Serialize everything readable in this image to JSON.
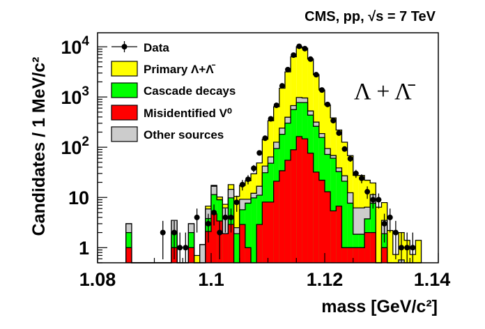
{
  "chart_data": {
    "type": "bar",
    "histogram": "stacked",
    "title": "CMS, pp, √s = 7 TeV",
    "annotation": "Λ + Λ̄",
    "xlabel": "mass [GeV/c²]",
    "ylabel": "Candidates / 1 MeV/c²",
    "xlim": [
      1.08,
      1.14
    ],
    "ylim": [
      0.5,
      19000
    ],
    "y_scale": "log",
    "grid": false,
    "legend_placement": "top-left",
    "x_ticks": [
      {
        "value": 1.08,
        "label": "1.08"
      },
      {
        "value": 1.1,
        "label": "1.1"
      },
      {
        "value": 1.12,
        "label": "1.12"
      },
      {
        "value": 1.14,
        "label": "1.14"
      }
    ],
    "y_ticks": [
      {
        "value": 1,
        "label": "1",
        "sup": ""
      },
      {
        "value": 10,
        "label": "10",
        "sup": ""
      },
      {
        "value": 100,
        "label": "10",
        "sup": "2"
      },
      {
        "value": 1000,
        "label": "10",
        "sup": "3"
      },
      {
        "value": 10000,
        "label": "10",
        "sup": "4"
      }
    ],
    "bin_width": 0.001,
    "bin_low_edges": [
      1.085,
      1.086,
      1.087,
      1.088,
      1.089,
      1.09,
      1.091,
      1.092,
      1.093,
      1.094,
      1.095,
      1.096,
      1.097,
      1.098,
      1.099,
      1.1,
      1.101,
      1.102,
      1.103,
      1.104,
      1.105,
      1.106,
      1.107,
      1.108,
      1.109,
      1.11,
      1.111,
      1.112,
      1.113,
      1.114,
      1.115,
      1.116,
      1.117,
      1.118,
      1.119,
      1.12,
      1.121,
      1.122,
      1.123,
      1.124,
      1.125,
      1.126,
      1.127,
      1.128,
      1.129,
      1.13,
      1.131,
      1.132,
      1.133,
      1.134,
      1.135,
      1.136
    ],
    "series": [
      {
        "name": "Misidentified V⁰",
        "color": "#ff0000",
        "values": [
          1,
          0,
          0,
          0,
          0,
          0,
          0,
          0,
          1,
          0,
          0,
          1,
          0,
          0,
          2.1,
          4.7,
          3.4,
          1.9,
          2.9,
          0,
          2.9,
          1,
          0,
          2.9,
          8.1,
          8.1,
          21,
          34,
          55,
          89,
          163,
          147,
          76,
          32,
          22,
          13,
          5.4,
          6.7,
          1,
          1,
          1,
          1,
          2,
          2,
          0,
          1,
          0,
          0,
          0,
          0,
          0,
          0
        ]
      },
      {
        "name": "Cascade decays",
        "color": "#00ff00",
        "values": [
          1,
          0,
          0,
          0,
          0,
          0,
          0,
          0,
          1,
          0,
          0,
          1,
          0,
          0,
          1.7,
          6.7,
          5.6,
          0,
          6.9,
          1.9,
          2.8,
          6.7,
          9.8,
          8.2,
          23,
          40,
          73,
          147,
          247,
          473,
          611,
          627,
          359,
          229,
          134,
          59,
          55,
          26,
          20,
          6.7,
          0.85,
          0.85,
          1.75,
          5.7,
          0,
          0.9,
          0,
          0,
          0,
          0,
          0,
          0
        ]
      },
      {
        "name": "Other sources",
        "color": "#cccccc",
        "values": [
          1,
          0,
          0,
          0,
          0,
          0,
          0,
          0,
          1.5,
          0,
          0,
          1,
          0,
          1.15,
          2.1,
          5.3,
          0,
          4.3,
          4.7,
          0.6,
          3.5,
          1.5,
          2.3,
          5.6,
          11,
          16,
          32,
          59,
          93,
          111,
          203,
          181,
          92,
          55,
          31,
          22,
          8,
          6,
          6,
          4.7,
          4.35,
          4.35,
          2.65,
          3.7,
          0,
          1.6,
          0,
          0,
          0.57,
          0,
          0,
          0
        ]
      },
      {
        "name": "Primary Λ+Λ̄",
        "color": "#ffff00",
        "values": [
          0,
          0,
          0,
          0,
          0,
          0,
          0,
          0,
          0,
          0,
          0,
          0,
          0.7,
          0,
          0.8,
          0.7,
          1.2,
          1.1,
          3.5,
          8,
          8.2,
          12.3,
          17.5,
          32,
          102,
          273,
          514,
          1256,
          2765,
          5637,
          9023,
          8415,
          5153,
          2464,
          1190,
          601,
          315,
          181,
          99,
          55.6,
          21.3,
          21.3,
          15.6,
          8,
          6.4,
          4.4,
          2.2,
          0.73,
          1.43,
          1.4,
          0.73,
          1.4
        ]
      }
    ],
    "data_points": {
      "name": "Data",
      "values": [
        null,
        null,
        null,
        null,
        null,
        null,
        2,
        null,
        2,
        1,
        1,
        null,
        4,
        null,
        3,
        5,
        2,
        4,
        4,
        8,
        18,
        23,
        38,
        77,
        151,
        367,
        683,
        1667,
        3514,
        6810,
        10200,
        9180,
        5680,
        2780,
        1377,
        711,
        338,
        191,
        92,
        59,
        30,
        24,
        13,
        9,
        9,
        3,
        4,
        2,
        1,
        1,
        1,
        null
      ]
    },
    "legend": [
      {
        "label": "Data",
        "kind": "marker"
      },
      {
        "label": "Primary Λ+Λ̄",
        "color": "#ffff00"
      },
      {
        "label": "Cascade decays",
        "color": "#00ff00"
      },
      {
        "label": "Misidentified V⁰",
        "color": "#ff0000"
      },
      {
        "label": "Other sources",
        "color": "#cccccc"
      }
    ]
  }
}
